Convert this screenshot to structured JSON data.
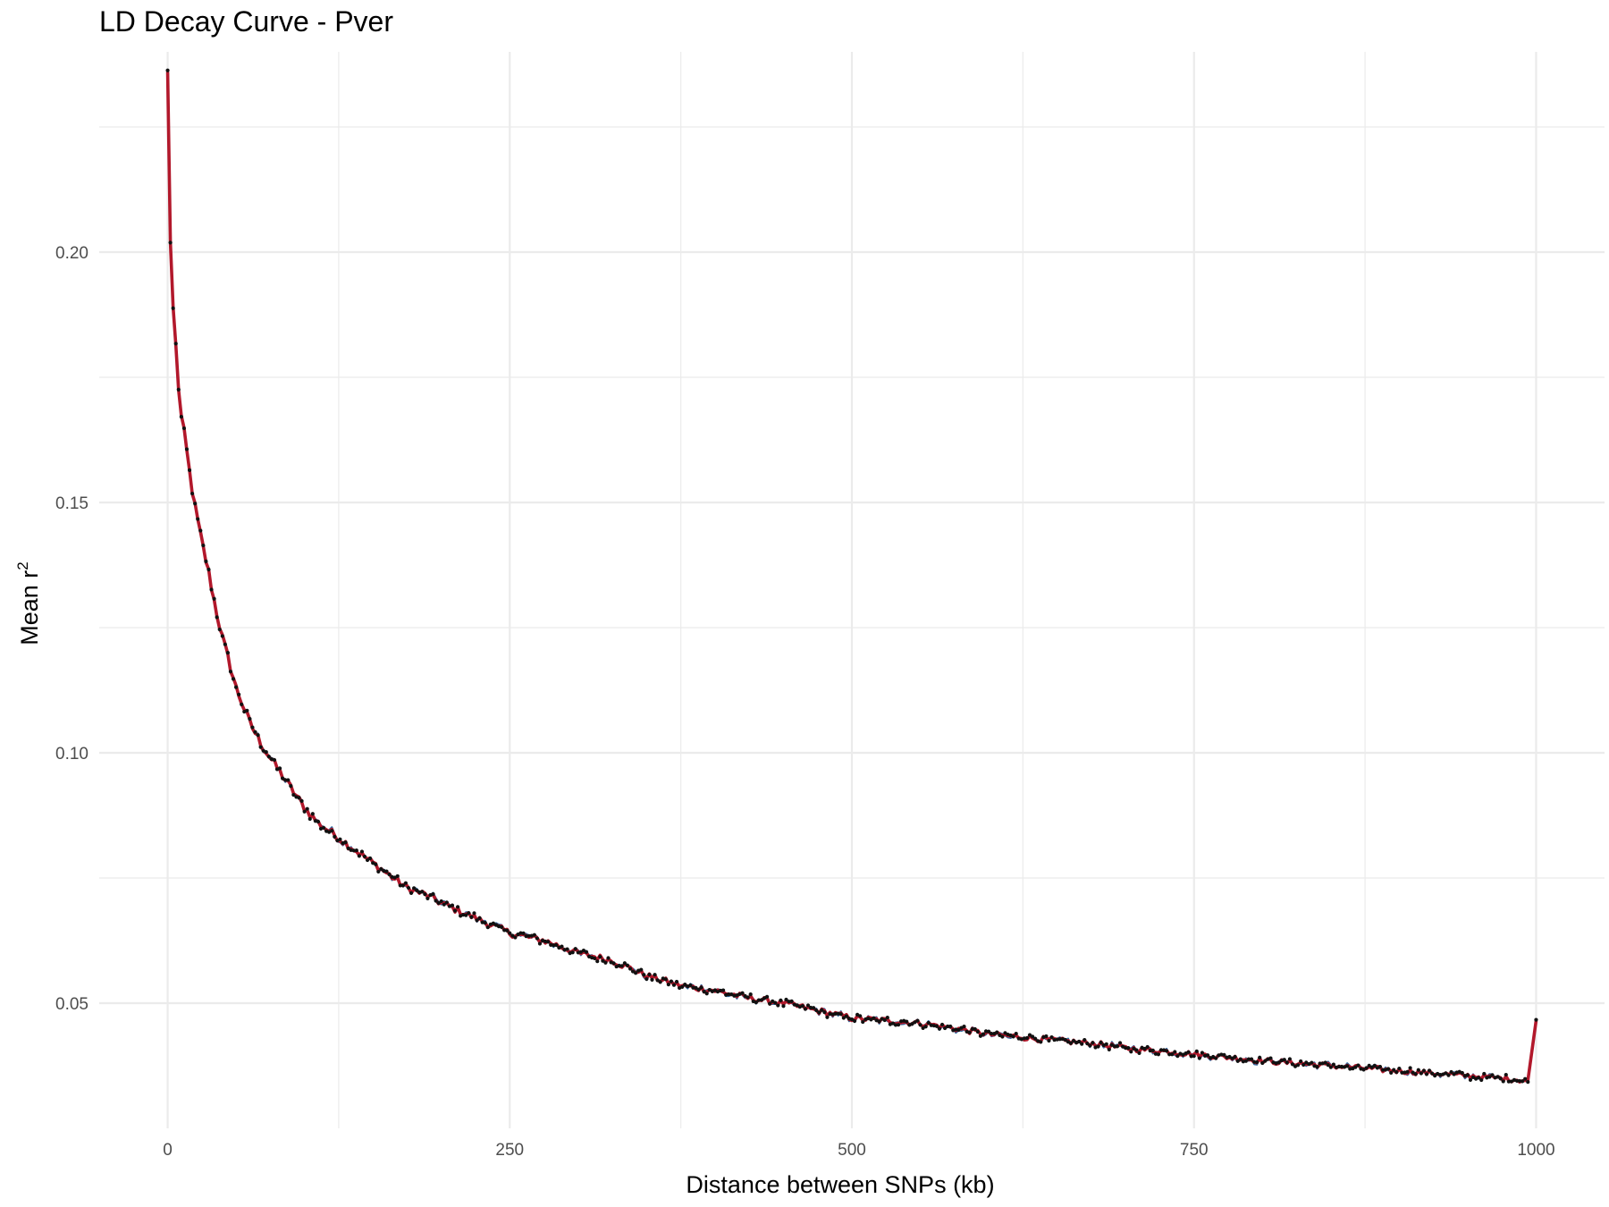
{
  "chart_data": {
    "type": "line",
    "title": "LD Decay Curve - Pver",
    "xlabel": "Distance between SNPs (kb)",
    "ylabel": "Mean r",
    "ylabel_superscript": "2",
    "xlim": [
      -50,
      1050
    ],
    "ylim": [
      0.025,
      0.24
    ],
    "x_ticks": [
      0,
      250,
      500,
      750,
      1000
    ],
    "x_tick_labels": [
      "0",
      "250",
      "500",
      "750",
      "1000"
    ],
    "x_minor_ticks": [
      125,
      375,
      625,
      875
    ],
    "y_ticks": [
      0.05,
      0.1,
      0.15,
      0.2
    ],
    "y_tick_labels": [
      "0.05",
      "0.10",
      "0.15",
      "0.20"
    ],
    "y_minor_ticks": [
      0.075,
      0.125,
      0.175,
      0.225
    ],
    "grid": true,
    "legend": "none",
    "colors": {
      "points": "#111111",
      "smooth_line": "#b2182b",
      "raw_line": "#2c6ea3",
      "grid": "#ebebeb"
    },
    "series": [
      {
        "kind": "points_and_lines",
        "x": [
          0,
          1,
          2,
          3,
          4,
          6,
          8,
          10,
          13,
          16,
          20,
          25,
          30,
          35,
          40,
          45,
          50,
          60,
          70,
          80,
          90,
          100,
          110,
          125,
          140,
          150,
          160,
          175,
          190,
          200,
          225,
          250,
          275,
          300,
          325,
          350,
          375,
          400,
          425,
          450,
          475,
          500,
          525,
          550,
          575,
          600,
          625,
          650,
          675,
          700,
          725,
          750,
          775,
          800,
          825,
          850,
          875,
          900,
          925,
          950,
          975,
          995,
          1000
        ],
        "y": [
          0.236,
          0.215,
          0.202,
          0.196,
          0.189,
          0.181,
          0.173,
          0.167,
          0.162,
          0.156,
          0.149,
          0.142,
          0.136,
          0.129,
          0.123,
          0.118,
          0.113,
          0.106,
          0.101,
          0.097,
          0.093,
          0.089,
          0.086,
          0.083,
          0.08,
          0.078,
          0.076,
          0.073,
          0.0715,
          0.07,
          0.067,
          0.064,
          0.0625,
          0.06,
          0.0585,
          0.0555,
          0.0535,
          0.0525,
          0.051,
          0.05,
          0.0485,
          0.047,
          0.0465,
          0.046,
          0.045,
          0.0438,
          0.0432,
          0.0425,
          0.042,
          0.041,
          0.0405,
          0.0398,
          0.0392,
          0.0385,
          0.038,
          0.0375,
          0.037,
          0.0365,
          0.036,
          0.0355,
          0.035,
          0.0345,
          0.0465
        ]
      }
    ]
  }
}
